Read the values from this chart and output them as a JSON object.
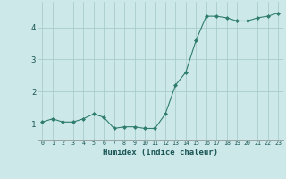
{
  "x": [
    0,
    1,
    2,
    3,
    4,
    5,
    6,
    7,
    8,
    9,
    10,
    11,
    12,
    13,
    14,
    15,
    16,
    17,
    18,
    19,
    20,
    21,
    22,
    23
  ],
  "y": [
    1.05,
    1.15,
    1.05,
    1.05,
    1.15,
    1.3,
    1.2,
    0.85,
    0.9,
    0.9,
    0.85,
    0.85,
    1.3,
    2.2,
    2.6,
    3.6,
    4.35,
    4.35,
    4.3,
    4.2,
    4.2,
    4.3,
    4.35,
    4.45
  ],
  "xlabel": "Humidex (Indice chaleur)",
  "ylim": [
    0.5,
    4.8
  ],
  "xlim": [
    -0.5,
    23.5
  ],
  "yticks": [
    1,
    2,
    3,
    4
  ],
  "xtick_labels": [
    "0",
    "1",
    "2",
    "3",
    "4",
    "5",
    "6",
    "7",
    "8",
    "9",
    "10",
    "11",
    "12",
    "13",
    "14",
    "15",
    "16",
    "17",
    "18",
    "19",
    "20",
    "21",
    "22",
    "23"
  ],
  "line_color": "#2e7d6e",
  "marker": "D",
  "marker_size": 2.0,
  "bg_color": "#cce8e8",
  "grid_color": "#aacccc",
  "title": ""
}
